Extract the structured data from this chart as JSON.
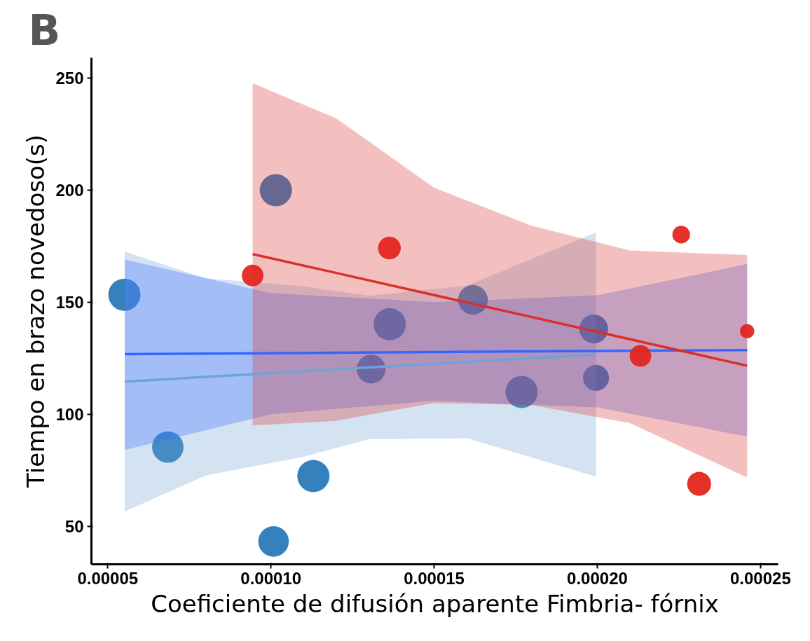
{
  "chart_data": {
    "type": "bubble",
    "title": "B",
    "xlabel": "Coeficiente de difusión aparente Fimbria- fórnix",
    "ylabel": "Tiempo en brazo novedoso(s)",
    "xlim": [
      4.5e-05,
      0.0002554
    ],
    "ylim": [
      33,
      259
    ],
    "xticks": [
      {
        "value": 5e-05,
        "label": "0.00005"
      },
      {
        "value": 0.0001,
        "label": "0.00010"
      },
      {
        "value": 0.00015,
        "label": "0.00015"
      },
      {
        "value": 0.0002,
        "label": "0.00020"
      },
      {
        "value": 0.00025,
        "label": "0.00025"
      }
    ],
    "yticks": [
      50,
      100,
      150,
      200,
      250
    ],
    "series": [
      {
        "type": "bubble",
        "color": "#2a7ab9",
        "x": [
          5.51e-05,
          6.84e-05,
          0.0001015,
          0.000113,
          0.0001008,
          0.0001307,
          0.0001364,
          0.0001619,
          0.0001768,
          0.0001989,
          0.0001996
        ],
        "values": [
          153.3,
          85.3,
          199.9,
          72.4,
          43.2,
          120.1,
          140.1,
          151,
          109.9,
          138,
          116.2
        ],
        "sizes": [
          1,
          0.95,
          1,
          1,
          0.9,
          0.8,
          1,
          0.85,
          1,
          0.8,
          0.65
        ]
      },
      {
        "type": "line",
        "color": "#6fa3d4",
        "x": [
          5.52e-05,
          8e-05,
          0.00011,
          0.00013,
          0.00016,
          0.0001996
        ],
        "values": [
          114.5,
          116.6,
          119.1,
          120.8,
          123.3,
          126.6
        ],
        "lower": [
          56.5,
          72.6,
          81,
          88.8,
          89.3,
          72.1
        ],
        "upper": [
          172.5,
          160.6,
          157,
          152.8,
          157.3,
          181.1
        ]
      },
      {
        "type": "line",
        "color": "#3366ff",
        "x": [
          5.52e-05,
          0.0001,
          0.00015,
          0.0002,
          0.0002459
        ],
        "values": [
          126.8,
          127.2,
          127.7,
          128.2,
          128.6
        ],
        "lower": [
          84,
          100,
          106,
          103,
          90
        ],
        "upper": [
          169,
          154,
          150,
          153,
          167
        ]
      },
      {
        "type": "line",
        "color": "#d9302a",
        "x": [
          9.44e-05,
          0.00012,
          0.00015,
          0.00018,
          0.00021,
          0.0002459
        ],
        "values": [
          171.4,
          163.0,
          153.1,
          143.3,
          133.4,
          121.6
        ],
        "lower": [
          95,
          97,
          105,
          104,
          96,
          71.7
        ],
        "upper": [
          247.7,
          232,
          201,
          184,
          173,
          171
        ]
      },
      {
        "type": "bubble",
        "color": "#e3261f",
        "x": [
          9.44e-05,
          0.0001363,
          0.0002132,
          0.0002257,
          0.0002312,
          0.0002459
        ],
        "values": [
          161.9,
          174.1,
          126,
          180.1,
          68.9,
          137
        ],
        "sizes": [
          0.45,
          0.5,
          0.45,
          0.3,
          0.55,
          0.2
        ]
      }
    ]
  }
}
